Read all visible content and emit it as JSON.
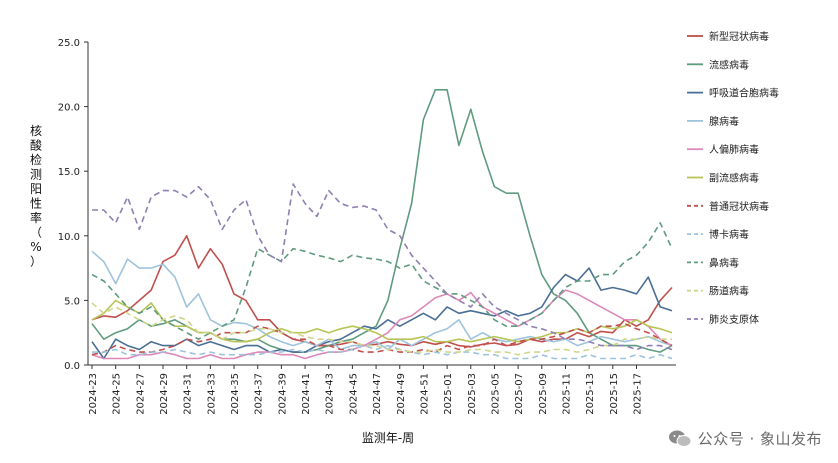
{
  "chart_data": {
    "type": "line",
    "ylabel": "核酸检测阳性率（%）",
    "xlabel": "监测年-周",
    "ylim": [
      0,
      25
    ],
    "y_ticks": [
      "0.0",
      "5.0",
      "10.0",
      "15.0",
      "20.0",
      "25.0"
    ],
    "x_tick_labels": [
      "2024-23",
      "2024-25",
      "2024-27",
      "2024-29",
      "2024-31",
      "2024-33",
      "2024-35",
      "2024-37",
      "2024-39",
      "2024-41",
      "2024-43",
      "2024-45",
      "2024-47",
      "2024-49",
      "2024-51",
      "2025-01",
      "2025-03",
      "2025-05",
      "2025-07",
      "2025-09",
      "2025-11",
      "2025-13",
      "2025-15",
      "2025-17"
    ],
    "grid": false,
    "legend_position": "right",
    "series": [
      {
        "name": "新型冠状病毒",
        "color": "#c0504d",
        "dash": "solid",
        "values": [
          3.5,
          3.8,
          3.7,
          4.2,
          5.0,
          5.8,
          8.0,
          8.5,
          10.0,
          7.5,
          9.0,
          7.8,
          5.5,
          5.0,
          3.5,
          3.5,
          2.5,
          2.0,
          1.8,
          1.5,
          1.5,
          1.6,
          1.8,
          1.5,
          1.6,
          1.8,
          1.6,
          1.5,
          1.8,
          1.6,
          1.8,
          1.5,
          1.4,
          1.6,
          1.7,
          1.5,
          1.6,
          2.0,
          1.8,
          2.0,
          2.0,
          2.5,
          2.2,
          2.6,
          2.5,
          3.5,
          3.0,
          3.5,
          5.0,
          6.0
        ]
      },
      {
        "name": "流感病毒",
        "color": "#5f9b7f",
        "dash": "solid",
        "values": [
          3.2,
          2.0,
          2.5,
          2.8,
          3.5,
          3.0,
          3.2,
          3.5,
          3.0,
          2.5,
          2.5,
          2.0,
          2.0,
          1.8,
          2.0,
          1.5,
          1.2,
          1.0,
          1.0,
          1.2,
          1.5,
          1.8,
          2.0,
          2.5,
          3.0,
          5.0,
          9.0,
          12.5,
          19.0,
          21.3,
          21.3,
          17.0,
          19.8,
          16.5,
          13.8,
          13.3,
          13.3,
          10.0,
          7.0,
          5.5,
          5.0,
          4.0,
          2.5,
          2.0,
          1.5,
          1.5,
          1.5,
          1.2,
          1.0,
          1.5
        ]
      },
      {
        "name": "呼吸道合胞病毒",
        "color": "#4a6f94",
        "dash": "solid",
        "values": [
          1.8,
          0.5,
          2.0,
          1.5,
          1.2,
          1.8,
          1.5,
          1.5,
          2.0,
          1.5,
          1.8,
          1.5,
          1.2,
          1.5,
          1.5,
          1.0,
          1.2,
          1.0,
          1.0,
          1.5,
          1.8,
          2.0,
          2.5,
          3.0,
          2.8,
          3.5,
          3.0,
          3.5,
          4.0,
          3.5,
          4.5,
          4.0,
          4.2,
          4.0,
          3.8,
          4.2,
          3.8,
          4.0,
          4.5,
          6.0,
          7.0,
          6.5,
          7.5,
          5.8,
          6.0,
          5.8,
          5.5,
          6.8,
          4.5,
          4.2
        ]
      },
      {
        "name": "腺病毒",
        "color": "#9ec3dc",
        "dash": "solid",
        "values": [
          8.8,
          8.0,
          6.3,
          8.2,
          7.5,
          7.5,
          7.8,
          6.8,
          4.5,
          5.5,
          3.5,
          3.0,
          3.3,
          3.2,
          2.8,
          2.2,
          1.8,
          1.5,
          1.8,
          1.5,
          2.0,
          1.2,
          1.5,
          1.5,
          1.8,
          1.2,
          2.0,
          1.5,
          2.0,
          2.5,
          2.8,
          3.5,
          2.0,
          2.5,
          2.0,
          1.8,
          2.0,
          2.2,
          2.0,
          1.8,
          2.0,
          1.5,
          1.8,
          2.2,
          2.0,
          1.8,
          2.0,
          2.2,
          1.8,
          1.5
        ]
      },
      {
        "name": "人偏肺病毒",
        "color": "#dd88b8",
        "dash": "solid",
        "values": [
          0.8,
          0.5,
          0.5,
          0.5,
          0.8,
          0.8,
          1.0,
          0.8,
          0.5,
          0.5,
          0.8,
          0.5,
          0.5,
          0.8,
          1.0,
          1.0,
          0.8,
          0.8,
          0.5,
          0.8,
          1.0,
          1.0,
          1.2,
          1.5,
          2.0,
          2.5,
          3.5,
          3.8,
          4.5,
          5.2,
          5.5,
          5.0,
          5.6,
          4.5,
          4.0,
          3.5,
          3.0,
          3.5,
          4.0,
          5.0,
          5.8,
          5.5,
          5.0,
          4.5,
          4.0,
          3.5,
          3.5,
          3.0,
          2.0,
          1.5
        ]
      },
      {
        "name": "副流感病毒",
        "color": "#b8c456",
        "dash": "solid",
        "values": [
          3.5,
          4.0,
          5.0,
          4.5,
          4.0,
          4.8,
          3.5,
          3.0,
          3.0,
          2.5,
          2.5,
          2.0,
          1.8,
          1.8,
          2.0,
          2.5,
          2.8,
          2.5,
          2.5,
          2.8,
          2.5,
          2.8,
          3.0,
          2.8,
          2.5,
          2.0,
          2.0,
          2.0,
          2.2,
          1.8,
          1.8,
          2.0,
          1.8,
          2.0,
          2.2,
          2.0,
          1.8,
          2.0,
          2.2,
          2.5,
          2.5,
          2.8,
          2.5,
          3.0,
          2.8,
          3.0,
          3.5,
          3.0,
          2.8,
          2.5
        ]
      },
      {
        "name": "普通冠状病毒",
        "color": "#c0504d",
        "dash": "dash",
        "values": [
          0.8,
          1.0,
          1.5,
          1.2,
          1.0,
          1.0,
          1.2,
          1.5,
          2.0,
          1.8,
          2.0,
          2.5,
          2.5,
          2.5,
          3.0,
          2.8,
          2.5,
          2.0,
          2.0,
          1.5,
          1.5,
          1.2,
          1.2,
          1.0,
          1.0,
          1.2,
          1.0,
          1.0,
          1.2,
          1.0,
          1.5,
          1.2,
          1.5,
          1.5,
          2.0,
          1.5,
          1.8,
          2.0,
          2.0,
          2.2,
          2.5,
          2.8,
          2.5,
          3.0,
          3.0,
          3.2,
          2.8,
          2.5,
          2.0,
          1.5
        ]
      },
      {
        "name": "博卡病毒",
        "color": "#9ec3dc",
        "dash": "dash",
        "values": [
          1.0,
          1.0,
          1.2,
          0.8,
          0.8,
          1.0,
          1.0,
          1.2,
          1.0,
          0.8,
          1.0,
          0.8,
          0.8,
          0.8,
          0.8,
          1.0,
          1.0,
          1.2,
          1.0,
          1.2,
          1.0,
          1.0,
          1.2,
          1.5,
          1.2,
          1.5,
          1.2,
          1.0,
          0.8,
          1.0,
          0.8,
          1.0,
          1.0,
          0.8,
          0.8,
          0.5,
          0.5,
          0.5,
          0.8,
          0.5,
          0.5,
          0.5,
          0.8,
          0.5,
          0.5,
          0.5,
          0.8,
          0.5,
          0.8,
          0.5
        ]
      },
      {
        "name": "鼻病毒",
        "color": "#5f9b7f",
        "dash": "dash",
        "values": [
          7.0,
          6.5,
          5.5,
          4.5,
          4.0,
          4.5,
          3.5,
          3.0,
          2.5,
          2.0,
          2.5,
          3.0,
          3.5,
          6.0,
          9.0,
          8.5,
          8.0,
          9.0,
          8.8,
          8.5,
          8.3,
          8.0,
          8.5,
          8.3,
          8.2,
          8.0,
          7.5,
          7.8,
          6.5,
          6.0,
          5.5,
          5.5,
          5.0,
          4.5,
          3.5,
          3.0,
          3.0,
          3.5,
          4.0,
          5.0,
          6.0,
          6.5,
          6.5,
          7.0,
          7.0,
          8.0,
          8.5,
          9.5,
          11.0,
          9.0
        ]
      },
      {
        "name": "肠道病毒",
        "color": "#cfd68b",
        "dash": "dash",
        "values": [
          4.8,
          4.0,
          4.5,
          4.0,
          3.5,
          3.0,
          3.5,
          3.8,
          3.5,
          2.5,
          2.5,
          2.0,
          2.5,
          2.5,
          2.8,
          2.8,
          2.5,
          2.5,
          2.2,
          2.0,
          2.0,
          1.8,
          1.8,
          1.5,
          1.5,
          1.2,
          1.2,
          1.0,
          1.0,
          1.2,
          1.0,
          1.0,
          1.2,
          1.2,
          1.0,
          1.0,
          0.8,
          1.0,
          1.0,
          1.2,
          1.2,
          1.0,
          1.2,
          1.5,
          1.5,
          2.0,
          2.0,
          2.2,
          2.0,
          2.0
        ]
      },
      {
        "name": "肺炎支原体",
        "color": "#8f7fb3",
        "dash": "dash",
        "values": [
          12.0,
          12.0,
          11.0,
          13.0,
          10.5,
          13.0,
          13.5,
          13.5,
          13.0,
          13.8,
          12.8,
          10.5,
          12.0,
          12.8,
          10.0,
          8.5,
          8.0,
          14.0,
          12.5,
          11.5,
          13.5,
          12.5,
          12.2,
          12.3,
          12.0,
          10.5,
          10.0,
          8.5,
          7.5,
          6.5,
          5.5,
          5.0,
          4.5,
          5.5,
          4.5,
          4.0,
          3.5,
          3.0,
          2.8,
          2.5,
          2.0,
          2.0,
          1.8,
          1.5,
          1.5,
          1.5,
          1.2,
          1.5,
          1.5,
          1.2
        ]
      }
    ]
  },
  "watermark": {
    "text": "公众号 · 象山发布",
    "icon": "wechat-icon"
  }
}
